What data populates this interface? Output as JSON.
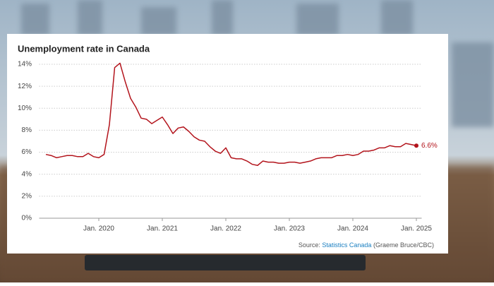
{
  "chart_data": {
    "type": "line",
    "title": "Unemployment rate in Canada",
    "x": [
      "2019-03",
      "2019-04",
      "2019-05",
      "2019-06",
      "2019-07",
      "2019-08",
      "2019-09",
      "2019-10",
      "2019-11",
      "2019-12",
      "2020-01",
      "2020-02",
      "2020-03",
      "2020-04",
      "2020-05",
      "2020-06",
      "2020-07",
      "2020-08",
      "2020-09",
      "2020-10",
      "2020-11",
      "2020-12",
      "2021-01",
      "2021-02",
      "2021-03",
      "2021-04",
      "2021-05",
      "2021-06",
      "2021-07",
      "2021-08",
      "2021-09",
      "2021-10",
      "2021-11",
      "2021-12",
      "2022-01",
      "2022-02",
      "2022-03",
      "2022-04",
      "2022-05",
      "2022-06",
      "2022-07",
      "2022-08",
      "2022-09",
      "2022-10",
      "2022-11",
      "2022-12",
      "2023-01",
      "2023-02",
      "2023-03",
      "2023-04",
      "2023-05",
      "2023-06",
      "2023-07",
      "2023-08",
      "2023-09",
      "2023-10",
      "2023-11",
      "2023-12",
      "2024-01",
      "2024-02",
      "2024-03",
      "2024-04",
      "2024-05",
      "2024-06",
      "2024-07",
      "2024-08",
      "2024-09",
      "2024-10",
      "2024-11",
      "2024-12",
      "2025-01"
    ],
    "series": [
      {
        "name": "Unemployment rate",
        "color": "#b3141c",
        "values": [
          5.8,
          5.7,
          5.5,
          5.6,
          5.7,
          5.7,
          5.6,
          5.6,
          5.9,
          5.6,
          5.5,
          5.8,
          8.5,
          13.7,
          14.1,
          12.4,
          10.9,
          10.1,
          9.1,
          9.0,
          8.6,
          8.9,
          9.2,
          8.5,
          7.7,
          8.2,
          8.3,
          7.9,
          7.4,
          7.1,
          7.0,
          6.5,
          6.1,
          5.9,
          6.4,
          5.5,
          5.4,
          5.4,
          5.2,
          4.9,
          4.8,
          5.2,
          5.1,
          5.1,
          5.0,
          5.0,
          5.1,
          5.1,
          5.0,
          5.1,
          5.2,
          5.4,
          5.5,
          5.5,
          5.5,
          5.7,
          5.7,
          5.8,
          5.7,
          5.8,
          6.1,
          6.1,
          6.2,
          6.4,
          6.4,
          6.6,
          6.5,
          6.5,
          6.8,
          6.7,
          6.6
        ],
        "value_labels": [
          null,
          null,
          null,
          null,
          null,
          null,
          null,
          null,
          null,
          null,
          null,
          null,
          null,
          null,
          null,
          null,
          null,
          null,
          null,
          null,
          null,
          null,
          null,
          null,
          null,
          null,
          null,
          null,
          null,
          null,
          null,
          null,
          null,
          null,
          null,
          null,
          null,
          null,
          null,
          null,
          null,
          null,
          null,
          null,
          null,
          null,
          null,
          null,
          null,
          null,
          null,
          null,
          null,
          null,
          null,
          null,
          null,
          null,
          null,
          null,
          null,
          null,
          null,
          null,
          null,
          null,
          null,
          null,
          null,
          null,
          "6.6%"
        ]
      }
    ],
    "xlim": [
      "2019-02",
      "2025-02"
    ],
    "xticks": [
      {
        "value": "2020-01",
        "label": "Jan. 2020"
      },
      {
        "value": "2021-01",
        "label": "Jan. 2021"
      },
      {
        "value": "2022-01",
        "label": "Jan. 2022"
      },
      {
        "value": "2023-01",
        "label": "Jan. 2023"
      },
      {
        "value": "2024-01",
        "label": "Jan. 2024"
      },
      {
        "value": "2025-01",
        "label": "Jan. 2025"
      }
    ],
    "ylim": [
      0,
      14
    ],
    "yticks": [
      {
        "value": 0,
        "label": "0%"
      },
      {
        "value": 2,
        "label": "2%"
      },
      {
        "value": 4,
        "label": "4%"
      },
      {
        "value": 6,
        "label": "6%"
      },
      {
        "value": 8,
        "label": "8%"
      },
      {
        "value": 10,
        "label": "10%"
      },
      {
        "value": 12,
        "label": "12%"
      },
      {
        "value": 14,
        "label": "14%"
      }
    ],
    "grid": true,
    "source": {
      "prefix": "Source:",
      "link": "Statistics Canada",
      "credit": "(Graeme Bruce/CBC)"
    }
  }
}
